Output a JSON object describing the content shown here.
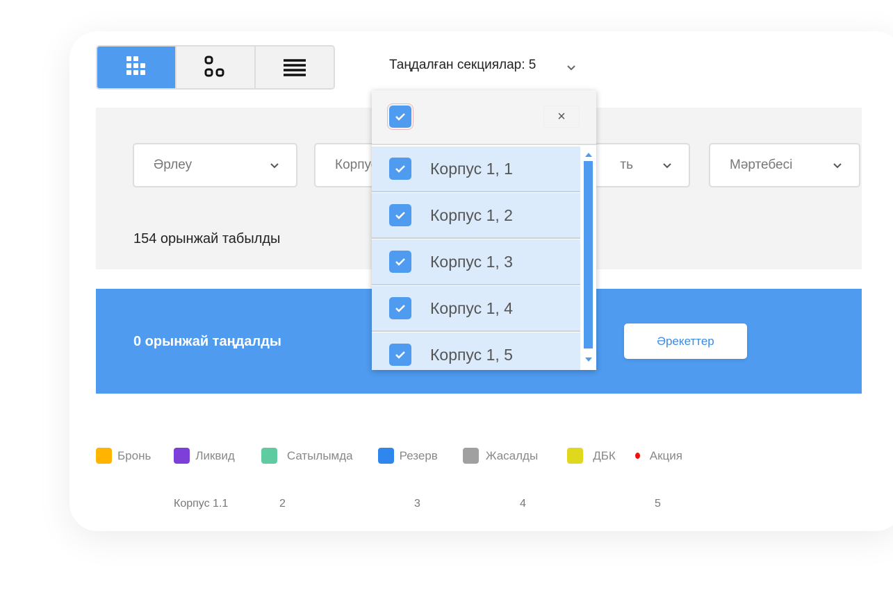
{
  "view_toggle": {
    "buttons": [
      {
        "icon": "grid-icon",
        "active": true
      },
      {
        "icon": "blocks-icon",
        "active": false
      },
      {
        "icon": "list-icon",
        "active": false
      }
    ]
  },
  "sections_selector": {
    "label": "Таңдалған секциялар: 5"
  },
  "filters": [
    {
      "label": "Әрлеу"
    },
    {
      "label": "Корпус"
    },
    {
      "label": "ть"
    },
    {
      "label": "Мәртебесі"
    }
  ],
  "found_text": "154 орынжай табылды",
  "selection_bar": {
    "text": "0 орынжай таңдалды",
    "actions_label": "Әрекеттер",
    "color": "#4f9bf0"
  },
  "legend": [
    {
      "label": "Бронь",
      "color": "#ffb400"
    },
    {
      "label": "Ликвид",
      "color": "#7d3fd9"
    },
    {
      "label": "Сатылымда",
      "color": "#5ecba1"
    },
    {
      "label": "Резерв",
      "color": "#2f86ec"
    },
    {
      "label": "Жасалды",
      "color": "#a0a0a0"
    },
    {
      "label": "ДБК",
      "color": "#e0d81c"
    },
    {
      "label": "Акция",
      "color": "#ee1111"
    }
  ],
  "axis_labels": [
    "Корпус 1.1",
    "2",
    "3",
    "4",
    "5"
  ],
  "dropdown": {
    "select_all": true,
    "close_label": "×",
    "items": [
      {
        "label": "Корпус 1, 1",
        "checked": true
      },
      {
        "label": "Корпус 1, 2",
        "checked": true
      },
      {
        "label": "Корпус 1, 3",
        "checked": true
      },
      {
        "label": "Корпус 1, 4",
        "checked": true
      },
      {
        "label": "Корпус 1, 5",
        "checked": true
      }
    ]
  }
}
